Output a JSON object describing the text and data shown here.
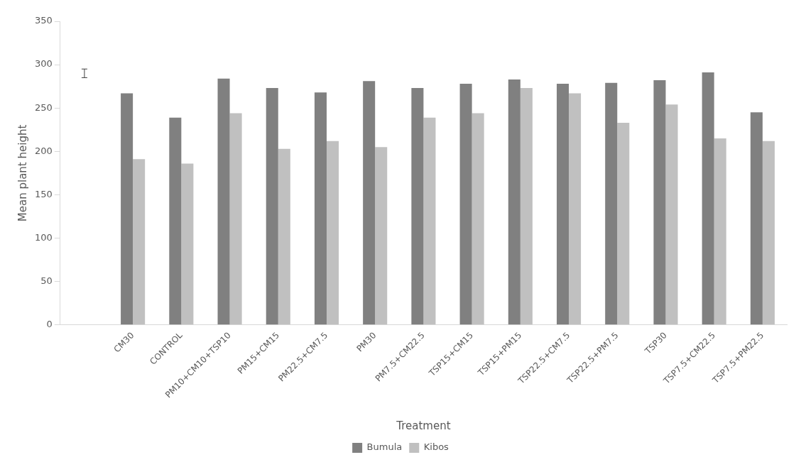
{
  "chart_data": {
    "type": "bar",
    "xlabel": "Treatment",
    "ylabel": "Mean plant height",
    "categories": [
      null,
      "CM30",
      "CONTROL",
      "PM10+CM10+TSP10",
      "PM15+CM15",
      "PM22.5+CM7.5",
      "PM30",
      "PM7.5+CM22.5",
      "TSP15+CM15",
      "TSP15+PM15",
      "TSP22.5+CM7.5",
      "TSP22.5+PM7.5",
      "TSP30",
      "TSP7.5+CM22.5",
      "TSP7.5+PM22.5"
    ],
    "series": [
      {
        "name": "Bumula",
        "color": "#808080",
        "values": [
          null,
          267,
          239,
          284,
          273,
          268,
          281,
          273,
          278,
          283,
          278,
          279,
          282,
          291,
          245
        ]
      },
      {
        "name": "Kibos",
        "color": "#c0c0c0",
        "values": [
          null,
          191,
          186,
          244,
          203,
          212,
          205,
          239,
          244,
          273,
          267,
          233,
          254,
          215,
          212
        ]
      },
      {
        "type": "scatter",
        "color": "#404040",
        "values": [
          290,
          null,
          null,
          null,
          null,
          null,
          null,
          null,
          null,
          null,
          null,
          null,
          null,
          null,
          null
        ],
        "errors": [
          5,
          null,
          null,
          null,
          null,
          null,
          null,
          null,
          null,
          null,
          null,
          null,
          null,
          null,
          null
        ]
      }
    ],
    "ylim": [
      0,
      350
    ],
    "yticks": [
      0,
      50,
      100,
      150,
      200,
      250,
      300,
      350
    ],
    "grid": false,
    "legend": "bottom"
  }
}
